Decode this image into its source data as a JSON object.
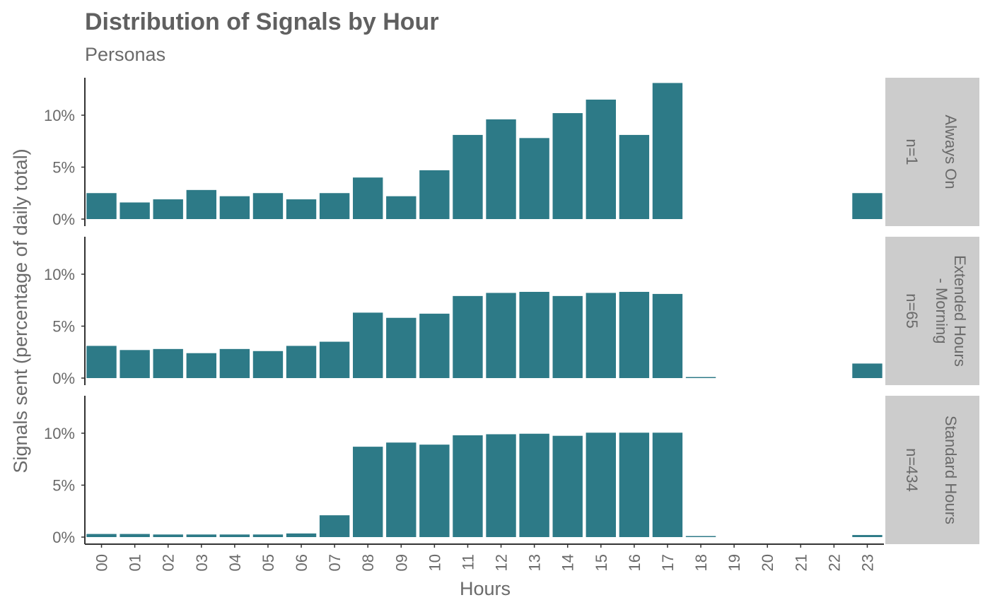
{
  "chart_data": {
    "type": "bar",
    "title": "Distribution of Signals by Hour",
    "subtitle": "Personas",
    "xlabel": "Hours",
    "ylabel": "Signals sent (percentage of daily total)",
    "categories": [
      "00",
      "01",
      "02",
      "03",
      "04",
      "05",
      "06",
      "07",
      "08",
      "09",
      "10",
      "11",
      "12",
      "13",
      "14",
      "15",
      "16",
      "17",
      "18",
      "19",
      "20",
      "21",
      "22",
      "23"
    ],
    "ylim": [
      0,
      13.5
    ],
    "y_ticks": [
      0,
      5,
      10
    ],
    "y_tick_labels": [
      "0%",
      "5%",
      "10%"
    ],
    "bar_color": "#2d7a87",
    "strip_color": "#cccccc",
    "grid": false,
    "panels": [
      {
        "strip_label_lines": [
          "Always On"
        ],
        "strip_n_label": "n=1",
        "values": [
          2.5,
          1.6,
          1.9,
          2.8,
          2.2,
          2.5,
          1.9,
          2.5,
          4.0,
          2.2,
          4.7,
          8.1,
          9.6,
          7.8,
          10.2,
          11.5,
          8.1,
          13.1,
          0,
          0,
          0,
          0,
          0,
          2.5
        ]
      },
      {
        "strip_label_lines": [
          "Extended Hours",
          "- Morning"
        ],
        "strip_n_label": "n=65",
        "values": [
          3.1,
          2.7,
          2.8,
          2.4,
          2.8,
          2.6,
          3.1,
          3.5,
          6.3,
          5.8,
          6.2,
          7.9,
          8.2,
          8.3,
          7.9,
          8.2,
          8.3,
          8.1,
          0.1,
          0,
          0,
          0,
          0,
          1.4
        ]
      },
      {
        "strip_label_lines": [
          "Standard Hours"
        ],
        "strip_n_label": "n=434",
        "values": [
          0.3,
          0.3,
          0.25,
          0.25,
          0.25,
          0.25,
          0.35,
          2.1,
          8.7,
          9.1,
          8.9,
          9.8,
          9.9,
          9.95,
          9.75,
          10.05,
          10.05,
          10.05,
          0.1,
          0,
          0,
          0,
          0,
          0.2
        ]
      }
    ]
  }
}
